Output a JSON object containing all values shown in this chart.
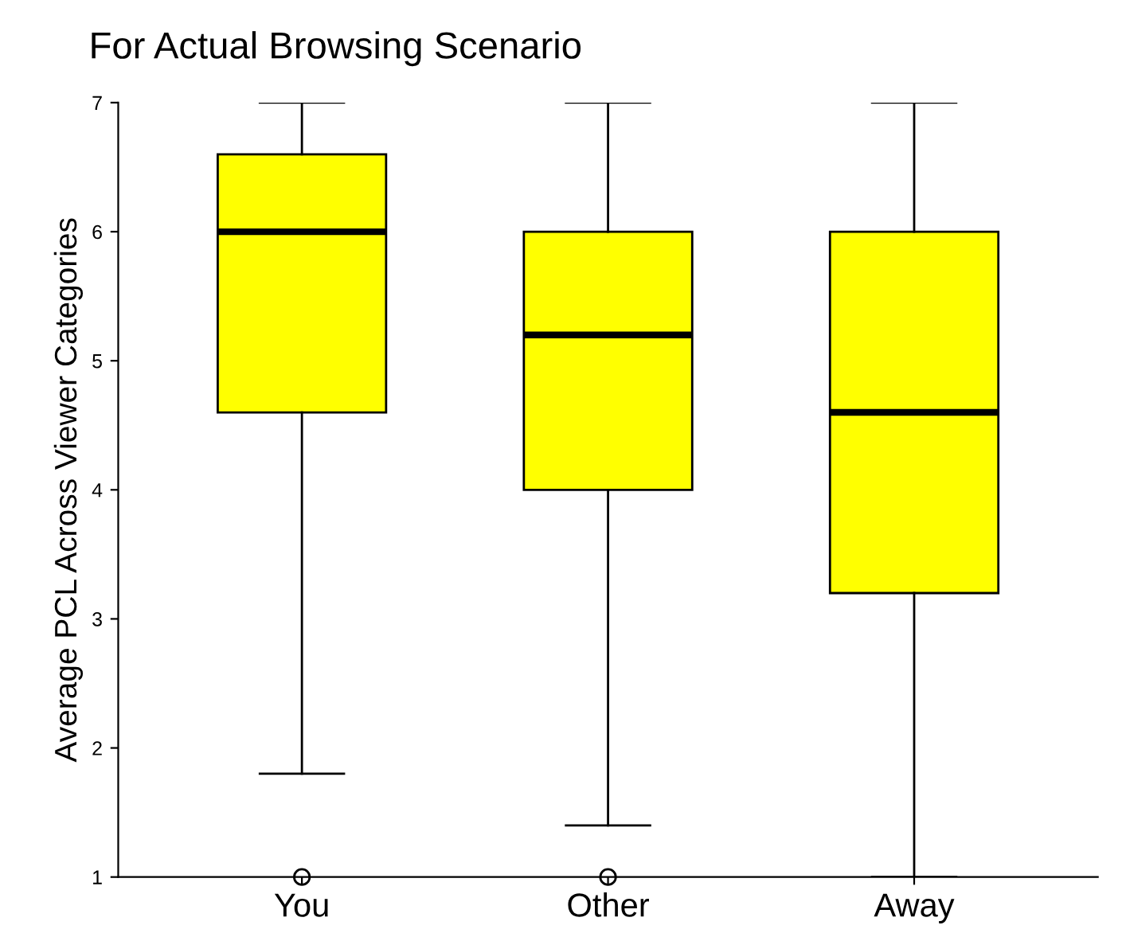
{
  "chart_data": {
    "type": "box",
    "title": "For Actual Browsing Scenario",
    "ylabel": "Average PCL Across Viewer Categories",
    "categories": [
      "You",
      "Other",
      "Away"
    ],
    "boxes": [
      {
        "low": 1.8,
        "q1": 4.6,
        "median": 6.0,
        "q3": 6.6,
        "high": 7,
        "outliers": [
          1
        ]
      },
      {
        "low": 1.4,
        "q1": 4.0,
        "median": 5.2,
        "q3": 6.0,
        "high": 7,
        "outliers": [
          1
        ]
      },
      {
        "low": 1,
        "q1": 3.2,
        "median": 4.6,
        "q3": 6.0,
        "high": 7
      }
    ],
    "color": "#ffff00",
    "ylim": [
      1,
      7
    ],
    "yticks": [
      1,
      2,
      3,
      4,
      5,
      6,
      7
    ],
    "grid": false
  }
}
